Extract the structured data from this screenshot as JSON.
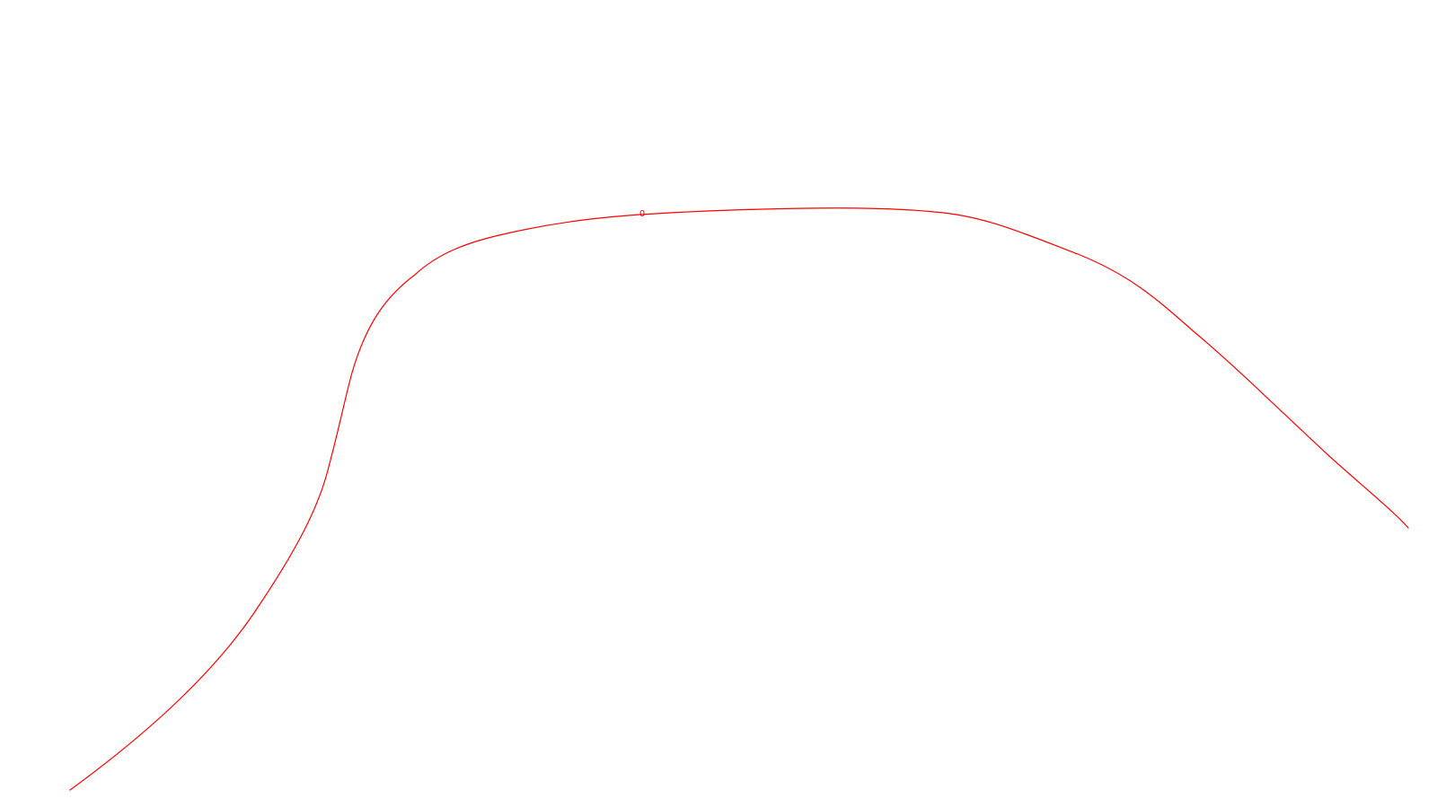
{
  "map": {
    "line_color": "#ff0000",
    "background": "#ffffff",
    "line_label": "0"
  }
}
